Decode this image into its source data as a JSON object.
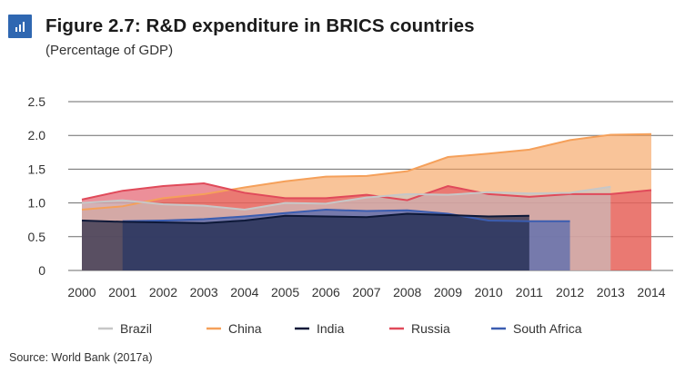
{
  "header": {
    "title": "Figure 2.7: R&D expenditure in BRICS countries",
    "subtitle": "(Percentage of GDP)",
    "icon": "bar-chart-icon"
  },
  "footer": {
    "source": "Source: World Bank (2017a)"
  },
  "chart_data": {
    "type": "area",
    "title": "Figure 2.7: R&D expenditure in BRICS countries",
    "subtitle": "(Percentage of GDP)",
    "xlabel": "",
    "ylabel": "",
    "x": [
      2000,
      2001,
      2002,
      2003,
      2004,
      2005,
      2006,
      2007,
      2008,
      2009,
      2010,
      2011,
      2012,
      2013,
      2014
    ],
    "x_tick_labels": [
      "2000",
      "2001",
      "2002",
      "2003",
      "2004",
      "2005",
      "2006",
      "2007",
      "2008",
      "2009",
      "2010",
      "2011",
      "2012",
      "2013",
      "2014"
    ],
    "y_ticks": [
      0,
      0.5,
      1.0,
      1.5,
      2.0,
      2.5
    ],
    "y_tick_labels": [
      "0",
      "0.5",
      "1.0",
      "1.5",
      "2.0",
      "2.5"
    ],
    "ylim": [
      0,
      2.5
    ],
    "grid": "horizontal",
    "legend_position": "bottom",
    "series": [
      {
        "name": "China",
        "color": "#f5a05a",
        "x": [
          2000,
          2001,
          2002,
          2003,
          2004,
          2005,
          2006,
          2007,
          2008,
          2009,
          2010,
          2011,
          2012,
          2013,
          2014
        ],
        "values": [
          0.9,
          0.95,
          1.07,
          1.13,
          1.23,
          1.32,
          1.39,
          1.4,
          1.47,
          1.68,
          1.73,
          1.79,
          1.93,
          2.01,
          2.02
        ]
      },
      {
        "name": "Russia",
        "color": "#e04a5a",
        "x": [
          2000,
          2001,
          2002,
          2003,
          2004,
          2005,
          2006,
          2007,
          2008,
          2009,
          2010,
          2011,
          2012,
          2013,
          2014
        ],
        "values": [
          1.05,
          1.18,
          1.25,
          1.29,
          1.15,
          1.07,
          1.07,
          1.12,
          1.04,
          1.25,
          1.13,
          1.09,
          1.13,
          1.13,
          1.19
        ]
      },
      {
        "name": "Brazil",
        "color": "#c7c7c7",
        "x": [
          2000,
          2001,
          2002,
          2003,
          2004,
          2005,
          2006,
          2007,
          2008,
          2009,
          2010,
          2011,
          2012,
          2013
        ],
        "values": [
          1.0,
          1.04,
          0.98,
          0.96,
          0.9,
          1.0,
          0.99,
          1.08,
          1.13,
          1.12,
          1.16,
          1.14,
          1.15,
          1.24
        ]
      },
      {
        "name": "South Africa",
        "color": "#3b5db0",
        "x": [
          2001,
          2002,
          2003,
          2004,
          2005,
          2006,
          2007,
          2008,
          2009,
          2010,
          2011,
          2012
        ],
        "values": [
          0.73,
          0.74,
          0.76,
          0.8,
          0.85,
          0.9,
          0.88,
          0.89,
          0.84,
          0.74,
          0.73,
          0.73
        ]
      },
      {
        "name": "India",
        "color": "#0d1838",
        "x": [
          2000,
          2001,
          2002,
          2003,
          2004,
          2005,
          2006,
          2007,
          2008,
          2009,
          2010,
          2011
        ],
        "values": [
          0.74,
          0.72,
          0.71,
          0.7,
          0.74,
          0.81,
          0.8,
          0.79,
          0.84,
          0.82,
          0.8,
          0.81
        ]
      }
    ],
    "legend": [
      {
        "name": "Brazil",
        "color": "#c7c7c7"
      },
      {
        "name": "China",
        "color": "#f5a05a"
      },
      {
        "name": "India",
        "color": "#0d1838"
      },
      {
        "name": "Russia",
        "color": "#e04a5a"
      },
      {
        "name": "South Africa",
        "color": "#3b5db0"
      }
    ]
  }
}
